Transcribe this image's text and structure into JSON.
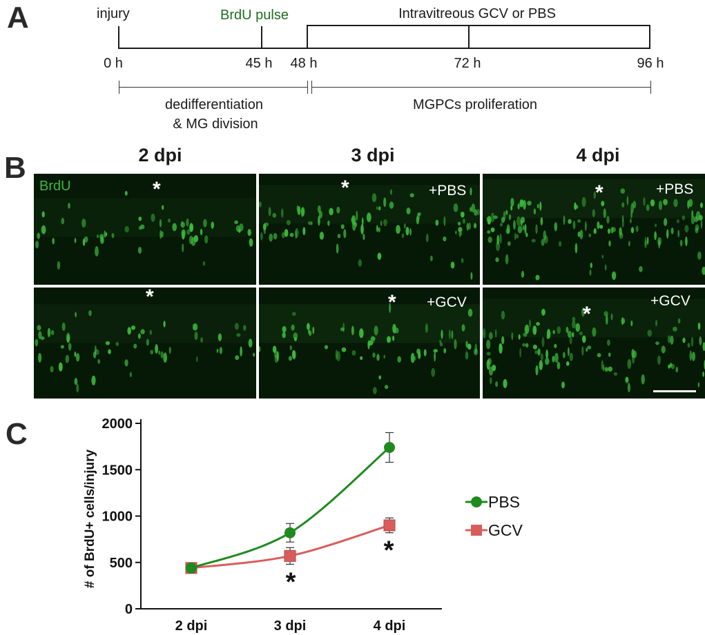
{
  "panels": {
    "a": "A",
    "b": "B",
    "c": "C"
  },
  "timeline": {
    "injury": "injury",
    "brdu_pulse": "BrdU pulse",
    "treatment": "Intravitreous GCV or PBS",
    "ticks": [
      "0 h",
      "45 h",
      "48 h",
      "72 h",
      "96 h"
    ],
    "phase1_line1": "dedifferentiation",
    "phase1_line2": "& MG division",
    "phase2": "MGPCs proliferation",
    "colors": {
      "brdu": "#1f6e1f"
    }
  },
  "micrographs": {
    "columns": [
      "2 dpi",
      "3 dpi",
      "4 dpi"
    ],
    "stain_label": "BrdU",
    "asterisk": "*",
    "row_labels": {
      "pbs": "+PBS",
      "gcv": "+GCV"
    },
    "colors": {
      "stain": "#3cb83c",
      "background": "#061806"
    }
  },
  "chart_data": {
    "type": "line",
    "categories": [
      "2 dpi",
      "3 dpi",
      "4 dpi"
    ],
    "ylabel": "# of BrdU+ cells/injury",
    "xlabel": "",
    "ylim": [
      0,
      2000
    ],
    "yticks": [
      0,
      500,
      1000,
      1500,
      2000
    ],
    "series": [
      {
        "name": "PBS",
        "values": [
          440,
          820,
          1740
        ],
        "errors": [
          40,
          100,
          160
        ],
        "color": "#1f8a1f",
        "marker": "circle"
      },
      {
        "name": "GCV",
        "values": [
          440,
          570,
          900
        ],
        "errors": [
          40,
          90,
          80
        ],
        "color": "#d95c5c",
        "marker": "square"
      }
    ],
    "significance": [
      {
        "category": "3 dpi",
        "mark": "*"
      },
      {
        "category": "4 dpi",
        "mark": "*"
      }
    ],
    "legend_position": "right"
  }
}
